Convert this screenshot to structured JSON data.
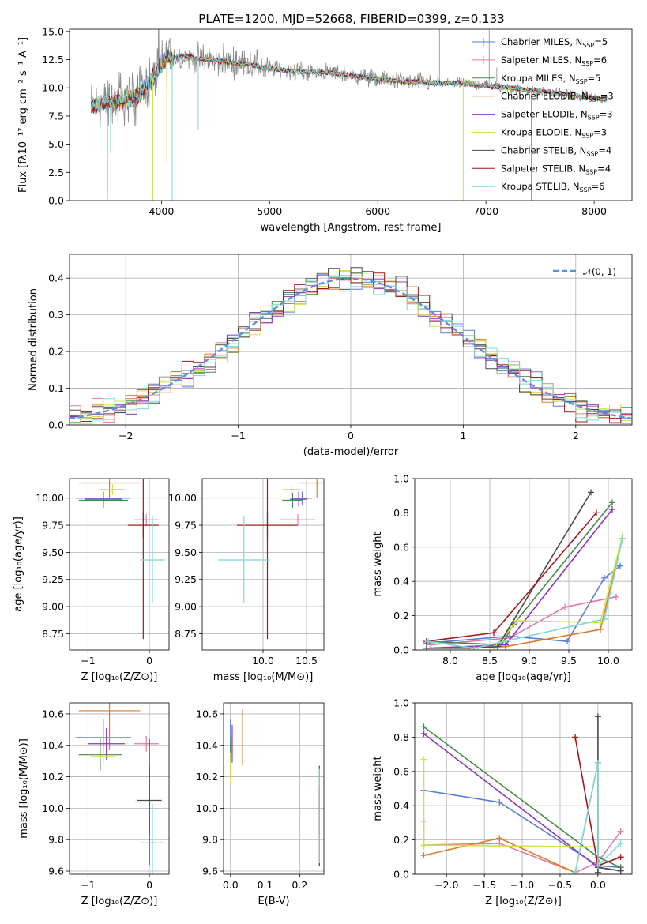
{
  "colors": {
    "Chabrier MILES": "#5b7fd6",
    "Salpeter MILES": "#e17aa8",
    "Kroupa MILES": "#4a8a4a",
    "Chabrier ELODIE": "#e07a25",
    "Salpeter ELODIE": "#8c35c0",
    "Kroupa ELODIE": "#cfe24a",
    "Chabrier STELIB": "#4a4a4a",
    "Salpeter STELIB": "#a01818",
    "Kroupa STELIB": "#7dd8d8",
    "spectrum": "#8a8a8a",
    "gaussian": "#5b8fe0"
  },
  "chart_data": [
    {
      "id": "spectrum",
      "type": "line",
      "title": "PLATE=1200, MJD=52668, FIBERID=0399, z=0.133",
      "xlabel": "wavelength [Angstrom, rest frame]",
      "ylabel": "Flux [fλ10⁻¹⁷ erg cm⁻² s⁻¹ A⁻¹]",
      "xlim": [
        3150,
        8350
      ],
      "ylim": [
        0,
        15.2
      ],
      "xticks": [
        "4000",
        "5000",
        "6000",
        "7000",
        "8000"
      ],
      "yticks": [
        "0.0",
        "2.5",
        "5.0",
        "7.5",
        "10.0",
        "12.5",
        "15.0"
      ],
      "legend_position": "top-right",
      "legend": [
        {
          "name": "Chabrier MILES, N",
          "sub": "SSP",
          "tail": "=5"
        },
        {
          "name": "Salpeter MILES, N",
          "sub": "SSP",
          "tail": "=6"
        },
        {
          "name": "Kroupa MILES, N",
          "sub": "SSP",
          "tail": "=5"
        },
        {
          "name": "Chabrier ELODIE, N",
          "sub": "SSP",
          "tail": "=3"
        },
        {
          "name": "Salpeter ELODIE, N",
          "sub": "SSP",
          "tail": "=3"
        },
        {
          "name": "Kroupa ELODIE, N",
          "sub": "SSP",
          "tail": "=3"
        },
        {
          "name": "Chabrier STELIB, N",
          "sub": "SSP",
          "tail": "=4"
        },
        {
          "name": "Salpeter STELIB, N",
          "sub": "SSP",
          "tail": "=4"
        },
        {
          "name": "Kroupa STELIB, N",
          "sub": "SSP",
          "tail": "=6"
        }
      ],
      "continuum": [
        [
          3350,
          8.3
        ],
        [
          3450,
          8.6
        ],
        [
          3550,
          8.8
        ],
        [
          3650,
          8.8
        ],
        [
          3750,
          9.1
        ],
        [
          3850,
          10.2
        ],
        [
          3950,
          11.2
        ],
        [
          4050,
          12.6
        ],
        [
          4200,
          12.8
        ],
        [
          4400,
          12.5
        ],
        [
          4600,
          12.3
        ],
        [
          4800,
          12.1
        ],
        [
          5000,
          11.7
        ],
        [
          5200,
          11.5
        ],
        [
          5400,
          11.4
        ],
        [
          5600,
          11.3
        ],
        [
          5800,
          11.0
        ],
        [
          6000,
          10.8
        ],
        [
          6200,
          10.6
        ],
        [
          6400,
          10.5
        ],
        [
          6600,
          10.4
        ],
        [
          6800,
          10.4
        ],
        [
          7000,
          10.2
        ],
        [
          7200,
          10.0
        ],
        [
          7400,
          9.8
        ],
        [
          7600,
          9.6
        ],
        [
          7800,
          9.3
        ],
        [
          8000,
          9.1
        ],
        [
          8100,
          9.0
        ]
      ]
    },
    {
      "id": "residuals",
      "type": "line",
      "xlabel": "(data-model)/error",
      "ylabel": "Normed distribution",
      "xlim": [
        -2.5,
        2.5
      ],
      "ylim": [
        0,
        0.465
      ],
      "xticks": [
        "−2",
        "−1",
        "0",
        "1",
        "2"
      ],
      "yticks": [
        "0.0",
        "0.1",
        "0.2",
        "0.3",
        "0.4"
      ],
      "legend_position": "top-right",
      "legend_label": "𝒩(0, 1)",
      "series_name": "𝒩(0, 1)"
    },
    {
      "id": "age_vs_Z",
      "type": "scatter",
      "xlabel": "Z [log₁₀(Z/Z⊙)]",
      "ylabel": "age  [log₁₀(age/yr)]",
      "xlim": [
        -1.3,
        0.32
      ],
      "ylim": [
        8.6,
        10.18
      ],
      "xticks": [
        "−1",
        "0"
      ],
      "yticks": [
        "8.75",
        "9.00",
        "9.25",
        "9.50",
        "9.75",
        "10.00"
      ],
      "points": [
        {
          "s": "Chabrier MILES",
          "x": -0.75,
          "y": 10.0,
          "xe": 0.45,
          "ye": 0.06
        },
        {
          "s": "Salpeter MILES",
          "x": -0.05,
          "y": 9.8,
          "xe": 0.2,
          "ye": 0.05
        },
        {
          "s": "Kroupa MILES",
          "x": -0.75,
          "y": 9.98,
          "xe": 0.4,
          "ye": 0.07
        },
        {
          "s": "Chabrier ELODIE",
          "x": -0.65,
          "y": 10.14,
          "xe": 0.5,
          "ye": 0.14
        },
        {
          "s": "Salpeter ELODIE",
          "x": -0.75,
          "y": 9.99,
          "xe": 0.3,
          "ye": 0.07
        },
        {
          "s": "Kroupa ELODIE",
          "x": -0.6,
          "y": 10.08,
          "xe": 0.2,
          "ye": 0.05
        },
        {
          "s": "Chabrier STELIB",
          "x": -0.1,
          "y": 9.75,
          "xe": 0.25,
          "ye": 0.12
        },
        {
          "s": "Salpeter STELIB",
          "x": -0.1,
          "y": 9.75,
          "xe": 0.25,
          "ye": 1.05
        },
        {
          "s": "Kroupa STELIB",
          "x": 0.05,
          "y": 9.43,
          "xe": 0.2,
          "ye": 0.4
        }
      ]
    },
    {
      "id": "age_vs_mass",
      "type": "scatter",
      "xlabel": "mass [log₁₀(M/M⊙)]",
      "ylabel": "",
      "xlim": [
        9.3,
        10.7
      ],
      "ylim": [
        8.6,
        10.18
      ],
      "xticks": [
        "10.0",
        "10.5"
      ],
      "yticks": [
        "8.75",
        "9.00",
        "9.25",
        "9.50",
        "9.75",
        "10.00"
      ],
      "points": [
        {
          "s": "Chabrier MILES",
          "x": 10.45,
          "y": 10.0,
          "xe": 0.12,
          "ye": 0.06
        },
        {
          "s": "Salpeter MILES",
          "x": 10.4,
          "y": 9.8,
          "xe": 0.2,
          "ye": 0.05
        },
        {
          "s": "Kroupa MILES",
          "x": 10.34,
          "y": 9.98,
          "xe": 0.12,
          "ye": 0.07
        },
        {
          "s": "Chabrier ELODIE",
          "x": 10.62,
          "y": 10.14,
          "xe": 0.2,
          "ye": 0.14
        },
        {
          "s": "Salpeter ELODIE",
          "x": 10.41,
          "y": 9.99,
          "xe": 0.1,
          "ye": 0.07
        },
        {
          "s": "Kroupa ELODIE",
          "x": 10.33,
          "y": 10.08,
          "xe": 0.1,
          "ye": 0.05
        },
        {
          "s": "Chabrier STELIB",
          "x": 10.05,
          "y": 9.75,
          "xe": 0.35,
          "ye": 0.12
        },
        {
          "s": "Salpeter STELIB",
          "x": 10.05,
          "y": 9.75,
          "xe": 0.35,
          "ye": 1.05
        },
        {
          "s": "Kroupa STELIB",
          "x": 9.78,
          "y": 9.43,
          "xe": 0.3,
          "ye": 0.4
        }
      ]
    },
    {
      "id": "massweight_vs_age",
      "type": "line",
      "xlabel": "age  [log₁₀(age/yr)]",
      "ylabel": "mass weight",
      "xlim": [
        7.55,
        10.3
      ],
      "ylim": [
        0,
        1.0
      ],
      "xticks": [
        "8.0",
        "8.5",
        "9.0",
        "9.5",
        "10.0"
      ],
      "yticks": [
        "0.0",
        "0.2",
        "0.4",
        "0.6",
        "0.8",
        "1.0"
      ],
      "series": [
        {
          "name": "Chabrier MILES",
          "x": [
            7.7,
            8.75,
            9.48,
            9.95,
            10.15
          ],
          "y": [
            0.04,
            0.08,
            0.05,
            0.42,
            0.49
          ]
        },
        {
          "name": "Salpeter MILES",
          "x": [
            7.75,
            8.75,
            9.45,
            10.1
          ],
          "y": [
            0.03,
            0.07,
            0.25,
            0.31
          ]
        },
        {
          "name": "Kroupa MILES",
          "x": [
            7.7,
            8.65,
            8.8,
            10.05
          ],
          "y": [
            0.05,
            0.03,
            0.15,
            0.86
          ]
        },
        {
          "name": "Chabrier ELODIE",
          "x": [
            7.7,
            8.7,
            9.9,
            10.18
          ],
          "y": [
            0.01,
            0.02,
            0.12,
            0.65
          ]
        },
        {
          "name": "Salpeter ELODIE",
          "x": [
            7.7,
            8.7,
            10.05
          ],
          "y": [
            0.01,
            0.03,
            0.82
          ]
        },
        {
          "name": "Kroupa ELODIE",
          "x": [
            8.55,
            8.85,
            9.9,
            10.18
          ],
          "y": [
            0.01,
            0.17,
            0.16,
            0.67
          ]
        },
        {
          "name": "Chabrier STELIB",
          "x": [
            7.7,
            8.3,
            8.6,
            9.78
          ],
          "y": [
            0.01,
            0.01,
            0.02,
            0.92
          ]
        },
        {
          "name": "Salpeter STELIB",
          "x": [
            7.7,
            8.55,
            9.85
          ],
          "y": [
            0.05,
            0.1,
            0.8
          ]
        },
        {
          "name": "Kroupa STELIB",
          "x": [
            7.72,
            8.3,
            9.95,
            10.18
          ],
          "y": [
            0.05,
            0.01,
            0.18,
            0.65
          ]
        }
      ]
    },
    {
      "id": "mass_vs_Z",
      "type": "scatter",
      "xlabel": "Z [log₁₀(Z/Z⊙)]",
      "ylabel": "mass [log₁₀(M/M⊙)]",
      "xlim": [
        -1.3,
        0.32
      ],
      "ylim": [
        9.58,
        10.67
      ],
      "xticks": [
        "−1",
        "0"
      ],
      "yticks": [
        "9.6",
        "9.8",
        "10.0",
        "10.2",
        "10.4",
        "10.6"
      ],
      "points": [
        {
          "s": "Chabrier MILES",
          "x": -0.75,
          "y": 10.45,
          "xe": 0.45,
          "ye": 0.12
        },
        {
          "s": "Salpeter MILES",
          "x": -0.05,
          "y": 10.41,
          "xe": 0.2,
          "ye": 0.05
        },
        {
          "s": "Kroupa MILES",
          "x": -0.8,
          "y": 10.34,
          "xe": 0.35,
          "ye": 0.1
        },
        {
          "s": "Chabrier ELODIE",
          "x": -0.65,
          "y": 10.62,
          "xe": 0.5,
          "ye": 0.25
        },
        {
          "s": "Salpeter ELODIE",
          "x": -0.7,
          "y": 10.41,
          "xe": 0.3,
          "ye": 0.1
        },
        {
          "s": "Kroupa ELODIE",
          "x": -0.75,
          "y": 10.33,
          "xe": 0.2,
          "ye": 0.05
        },
        {
          "s": "Chabrier STELIB",
          "x": 0.0,
          "y": 10.05,
          "xe": 0.2,
          "ye": 0.22
        },
        {
          "s": "Salpeter STELIB",
          "x": 0.0,
          "y": 10.04,
          "xe": 0.25,
          "ye": 0.4
        },
        {
          "s": "Kroupa STELIB",
          "x": 0.05,
          "y": 9.78,
          "xe": 0.2,
          "ye": 0.25
        }
      ]
    },
    {
      "id": "mass_vs_EBV",
      "type": "scatter",
      "xlabel": "E(B-V)",
      "ylabel": "",
      "xlim": [
        -0.02,
        0.27
      ],
      "ylim": [
        9.58,
        10.67
      ],
      "xticks": [
        "0.0",
        "0.1",
        "0.2"
      ],
      "yticks": [
        "9.6",
        "9.8",
        "10.0",
        "10.2",
        "10.4",
        "10.6"
      ],
      "points": [
        {
          "s": "Chabrier MILES",
          "x": 0.0,
          "y": 10.45,
          "xe": 0,
          "ye": 0.12
        },
        {
          "s": "Salpeter MILES",
          "x": 0.005,
          "y": 10.41,
          "xe": 0,
          "ye": 0.05
        },
        {
          "s": "Kroupa MILES",
          "x": 0.0,
          "y": 10.34,
          "xe": 0,
          "ye": 0.1
        },
        {
          "s": "Chabrier ELODIE",
          "x": 0.035,
          "y": 10.45,
          "xe": 0,
          "ye": 0.18
        },
        {
          "s": "Salpeter ELODIE",
          "x": 0.005,
          "y": 10.41,
          "xe": 0,
          "ye": 0.12
        },
        {
          "s": "Kroupa ELODIE",
          "x": 0.0,
          "y": 10.25,
          "xe": 0,
          "ye": 0.1
        },
        {
          "s": "Chabrier STELIB",
          "x": 0.257,
          "y": 10.05,
          "xe": 0,
          "ye": 0.22
        },
        {
          "s": "Salpeter STELIB",
          "x": 0.257,
          "y": 9.88,
          "xe": 0,
          "ye": 0.25
        },
        {
          "s": "Kroupa STELIB",
          "x": 0.257,
          "y": 9.95,
          "xe": 0,
          "ye": 0.3
        }
      ]
    },
    {
      "id": "massweight_vs_Z",
      "type": "line",
      "xlabel": "Z [log₁₀(Z/Z⊙)]",
      "ylabel": "mass weight",
      "xlim": [
        -2.42,
        0.45
      ],
      "ylim": [
        0,
        1.0
      ],
      "xticks": [
        "−2.0",
        "−1.5",
        "−1.0",
        "−0.5",
        "0.0"
      ],
      "yticks": [
        "0.0",
        "0.2",
        "0.4",
        "0.6",
        "0.8",
        "1.0"
      ],
      "series": [
        {
          "name": "Chabrier MILES",
          "x": [
            -2.3,
            -1.3,
            0.0,
            0.3
          ],
          "y": [
            0.49,
            0.42,
            0.05,
            0.04
          ]
        },
        {
          "name": "Salpeter MILES",
          "x": [
            -2.3,
            -2.3,
            -1.3,
            -0.3,
            0.0,
            0.3
          ],
          "y": [
            0.31,
            0.17,
            0.18,
            0.01,
            0.07,
            0.25
          ]
        },
        {
          "name": "Kroupa MILES",
          "x": [
            -2.3,
            0.0,
            0.3
          ],
          "y": [
            0.86,
            0.1,
            0.04
          ]
        },
        {
          "name": "Chabrier ELODIE",
          "x": [
            -2.3,
            -1.3,
            -0.3,
            0.0
          ],
          "y": [
            0.11,
            0.21,
            0.01,
            0.65
          ]
        },
        {
          "name": "Salpeter ELODIE",
          "x": [
            -2.3,
            0.0,
            0.3
          ],
          "y": [
            0.82,
            0.04,
            0.02
          ]
        },
        {
          "name": "Kroupa ELODIE",
          "x": [
            -2.3,
            -2.3,
            -2.3,
            0.0
          ],
          "y": [
            0.67,
            0.16,
            0.17,
            0.16
          ]
        },
        {
          "name": "Chabrier STELIB",
          "x": [
            0.0,
            0.0,
            0.0,
            0.3
          ],
          "y": [
            0.92,
            0.01,
            0.04,
            0.02
          ]
        },
        {
          "name": "Salpeter STELIB",
          "x": [
            -0.3,
            0.0,
            0.3
          ],
          "y": [
            0.8,
            0.05,
            0.1
          ]
        },
        {
          "name": "Kroupa STELIB",
          "x": [
            -0.3,
            0.0,
            0.0,
            0.3
          ],
          "y": [
            0.01,
            0.65,
            0.05,
            0.18
          ]
        }
      ]
    }
  ]
}
